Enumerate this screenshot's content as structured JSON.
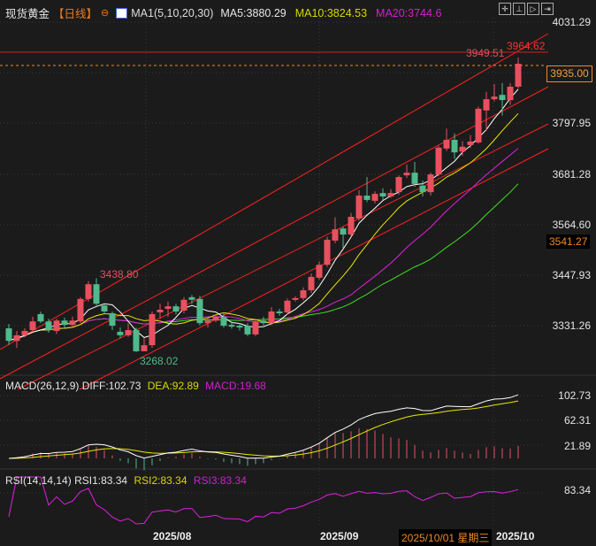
{
  "header": {
    "title": "现货黄金",
    "period": "【日线】",
    "ma_label": "MA1(5,10,20,30)",
    "ma5": "MA5:3880.29",
    "ma10": "MA10:3824.53",
    "ma20": "MA20:3744.6",
    "tools": [
      "crosshair-icon",
      "range-icon",
      "play-icon",
      "exit-icon"
    ]
  },
  "colors": {
    "background": "#1b1b1b",
    "up": "#e9505f",
    "down": "#4fba8c",
    "ma5": "#ffffff",
    "ma10": "#e8e800",
    "ma20": "#e020e0",
    "ma30": "#40e020",
    "channel": "#ff2020",
    "accent": "#f08a20"
  },
  "chart_data": [
    {
      "type": "candlestick",
      "title": "现货黄金 【日线】",
      "y_ticks": [
        "4031.29",
        "3797.95",
        "3681.28",
        "3564.60",
        "3447.93",
        "3331.26"
      ],
      "ylim": [
        3268.02,
        4031.29
      ],
      "x_ticks": [
        "2025/08",
        "2025/09",
        "2025/10"
      ],
      "crosshair_date": "2025/10/01 星期三",
      "current_price": "3935.00",
      "marker_price": "3541.27",
      "annotations": {
        "high_label": "3949.51",
        "line_label": "3964.62",
        "swing_high": "3438.80",
        "swing_low": "3268.02"
      },
      "ohlc": [
        [
          3323,
          3333,
          3285,
          3294
        ],
        [
          3294,
          3317,
          3278,
          3307
        ],
        [
          3307,
          3323,
          3303,
          3317
        ],
        [
          3319,
          3350,
          3315,
          3339
        ],
        [
          3356,
          3362,
          3335,
          3339
        ],
        [
          3339,
          3345,
          3313,
          3319
        ],
        [
          3317,
          3345,
          3310,
          3341
        ],
        [
          3341,
          3348,
          3325,
          3331
        ],
        [
          3331,
          3350,
          3327,
          3341
        ],
        [
          3339,
          3395,
          3335,
          3391
        ],
        [
          3391,
          3432,
          3385,
          3425
        ],
        [
          3425,
          3438.8,
          3376,
          3380
        ],
        [
          3376,
          3380,
          3356,
          3362
        ],
        [
          3358,
          3362,
          3319,
          3329
        ],
        [
          3315,
          3325,
          3300,
          3307
        ],
        [
          3307,
          3335,
          3303,
          3319
        ],
        [
          3319,
          3325,
          3268.02,
          3270
        ],
        [
          3270,
          3300,
          3270,
          3284
        ],
        [
          3284,
          3362,
          3278,
          3356
        ],
        [
          3360,
          3380,
          3345,
          3366
        ],
        [
          3368,
          3385,
          3350,
          3374
        ],
        [
          3374,
          3380,
          3355,
          3362
        ],
        [
          3364,
          3395,
          3358,
          3389
        ],
        [
          3395,
          3400,
          3380,
          3389
        ],
        [
          3391,
          3398,
          3330,
          3335
        ],
        [
          3335,
          3350,
          3325,
          3341
        ],
        [
          3341,
          3355,
          3337,
          3350
        ],
        [
          3350,
          3360,
          3325,
          3329
        ],
        [
          3331,
          3340,
          3322,
          3327
        ],
        [
          3329,
          3335,
          3318,
          3325
        ],
        [
          3329,
          3335,
          3305,
          3309
        ],
        [
          3309,
          3345,
          3305,
          3339
        ],
        [
          3341,
          3350,
          3330,
          3335
        ],
        [
          3335,
          3372,
          3330,
          3362
        ],
        [
          3362,
          3368,
          3352,
          3358
        ],
        [
          3360,
          3392,
          3355,
          3387
        ],
        [
          3389,
          3397,
          3385,
          3393
        ],
        [
          3393,
          3418,
          3388,
          3411
        ],
        [
          3411,
          3450,
          3405,
          3442
        ],
        [
          3440,
          3478,
          3436,
          3470
        ],
        [
          3470,
          3535,
          3465,
          3528
        ],
        [
          3526,
          3580,
          3520,
          3552
        ],
        [
          3554,
          3558,
          3509,
          3540
        ],
        [
          3540,
          3590,
          3535,
          3581
        ],
        [
          3577,
          3643,
          3572,
          3630
        ],
        [
          3630,
          3673,
          3615,
          3620
        ],
        [
          3618,
          3640,
          3612,
          3634
        ],
        [
          3636,
          3647,
          3620,
          3628
        ],
        [
          3628,
          3645,
          3625,
          3636
        ],
        [
          3638,
          3677,
          3632,
          3673
        ],
        [
          3677,
          3702,
          3671,
          3683
        ],
        [
          3683,
          3708,
          3650,
          3657
        ],
        [
          3653,
          3665,
          3628,
          3638
        ],
        [
          3638,
          3683,
          3630,
          3679
        ],
        [
          3679,
          3745,
          3675,
          3741
        ],
        [
          3739,
          3785,
          3733,
          3759
        ],
        [
          3759,
          3774,
          3715,
          3730
        ],
        [
          3732,
          3756,
          3722,
          3743
        ],
        [
          3747,
          3770,
          3740,
          3755
        ],
        [
          3753,
          3836,
          3750,
          3831
        ],
        [
          3827,
          3870,
          3780,
          3853
        ],
        [
          3853,
          3888,
          3848,
          3859
        ],
        [
          3863,
          3890,
          3815,
          3851
        ],
        [
          3851,
          3890,
          3840,
          3882
        ],
        [
          3882,
          3949.51,
          3878,
          3935
        ]
      ]
    },
    {
      "type": "line",
      "title": "MACD(26,12,9)",
      "legend": {
        "diff": "DIFF:102.73",
        "dea": "DEA:92.89",
        "macd": "MACD:19.68"
      },
      "y_ticks": [
        "102.73",
        "62.31",
        "21.89"
      ]
    },
    {
      "type": "line",
      "title": "RSI(14,14,14)",
      "legend": {
        "rsi1": "RSI1:83.34",
        "rsi2": "RSI2:83.34",
        "rsi3": "RSI3:83.34"
      },
      "y_ticks": [
        "83.34"
      ]
    }
  ]
}
